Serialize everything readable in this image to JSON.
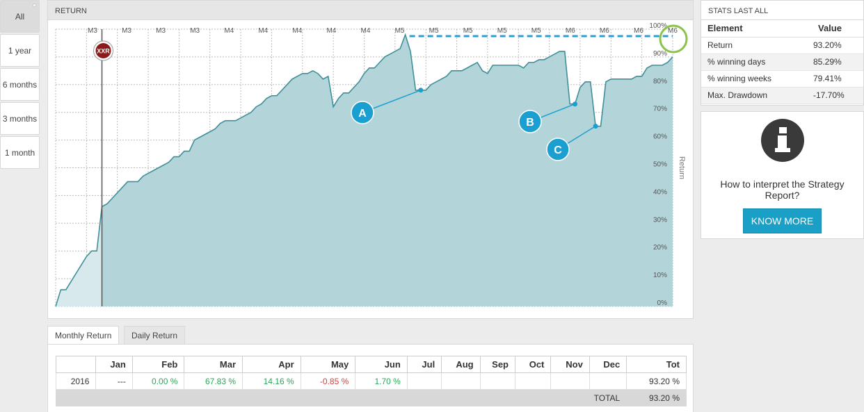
{
  "periods": [
    {
      "label": "All",
      "active": true
    },
    {
      "label": "1 year"
    },
    {
      "label": "6 months"
    },
    {
      "label": "3 months"
    },
    {
      "label": "1 month"
    }
  ],
  "chart_panel": {
    "title": "RETURN"
  },
  "chart_data": {
    "type": "area",
    "ylabel": "Return",
    "y_ticks": [
      "0%",
      "10%",
      "20%",
      "30%",
      "40%",
      "50%",
      "60%",
      "70%",
      "80%",
      "90%",
      "100%"
    ],
    "ylim": [
      0,
      100
    ],
    "x_period_labels": [
      "M3",
      "M3",
      "M3",
      "M3",
      "M4",
      "M4",
      "M4",
      "M4",
      "M4",
      "M5",
      "M5",
      "M5",
      "M5",
      "M5",
      "M6",
      "M6",
      "M6",
      "M6"
    ],
    "marker_label": "XXR",
    "marker_x_index": 9,
    "annotations": [
      {
        "label": "A"
      },
      {
        "label": "B"
      },
      {
        "label": "C"
      }
    ],
    "series": [
      {
        "values": [
          0,
          6,
          6,
          9,
          12,
          15,
          18,
          20,
          20,
          36,
          37,
          39,
          41,
          43,
          45,
          45,
          45,
          47,
          48,
          49,
          50,
          51,
          52,
          54,
          54,
          56,
          56,
          60,
          61,
          62,
          63,
          64,
          66,
          67,
          67,
          67,
          68,
          69,
          70,
          72,
          73,
          75,
          76,
          76,
          78,
          80,
          82,
          83,
          84,
          84,
          85,
          84,
          82,
          83,
          72,
          75,
          77,
          77,
          79,
          81,
          84,
          86,
          86,
          88,
          90,
          91,
          92,
          93,
          98,
          92,
          78,
          78,
          78,
          80,
          81,
          82,
          83,
          85,
          85,
          85,
          86,
          87,
          88,
          85,
          84,
          87,
          87,
          87,
          87,
          87,
          87,
          86,
          88,
          88,
          89,
          89,
          90,
          91,
          92,
          92,
          73,
          73,
          79,
          81,
          81,
          65,
          65,
          81,
          82,
          82,
          82,
          82,
          82,
          83,
          83,
          86,
          87,
          87,
          87,
          88,
          90
        ]
      }
    ],
    "benchmark_level": 98
  },
  "stats": {
    "title": "STATS LAST ALL",
    "headers": [
      "Element",
      "Value"
    ],
    "rows": [
      {
        "element": "Return",
        "value": "93.20%"
      },
      {
        "element": "% winning days",
        "value": "85.29%"
      },
      {
        "element": "% winning weeks",
        "value": "79.41%"
      },
      {
        "element": "Max. Drawdown",
        "value": "-17.70%"
      }
    ]
  },
  "info": {
    "text": "How to interpret the Strategy Report?",
    "button": "KNOW MORE"
  },
  "tabs": [
    "Monthly Return",
    "Daily Return"
  ],
  "monthly": {
    "headers": [
      "",
      "Jan",
      "Feb",
      "Mar",
      "Apr",
      "May",
      "Jun",
      "Jul",
      "Aug",
      "Sep",
      "Oct",
      "Nov",
      "Dec",
      "Tot"
    ],
    "row": [
      "2016",
      "---",
      "0.00 %",
      "67.83 %",
      "14.16 %",
      "-0.85 %",
      "1.70 %",
      "",
      "",
      "",
      "",
      "",
      "",
      "93.20 %"
    ],
    "total_label": "TOTAL",
    "total_value": "93.20 %"
  },
  "colors": {
    "line": "#3f8f99",
    "fill_dark": "#b3d5da",
    "fill_light": "#d8e9ed",
    "annotation": "#1a9fd0",
    "highlight_ring": "#8bc34a",
    "marker": "#8b1a1a"
  }
}
